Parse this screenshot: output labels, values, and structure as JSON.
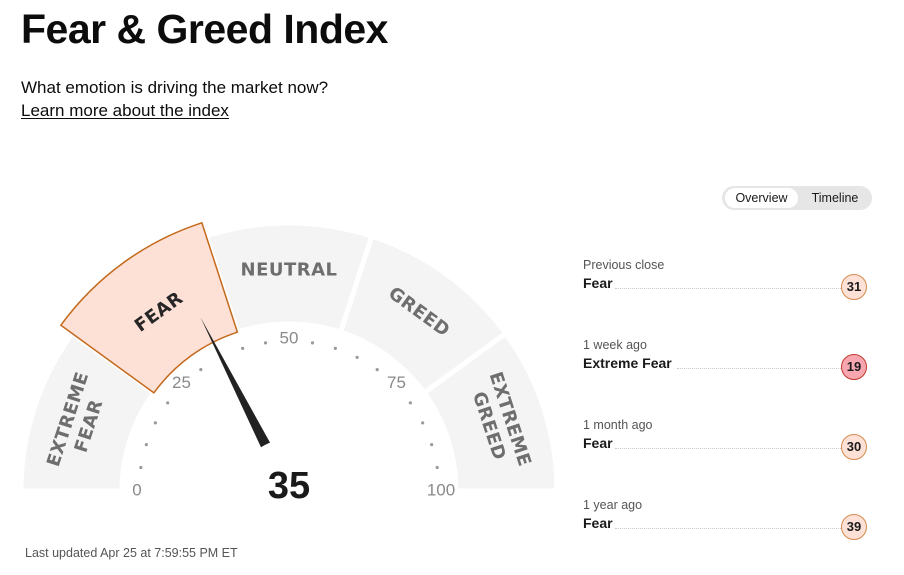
{
  "header": {
    "title": "Fear & Greed Index",
    "subtitle": "What emotion is driving the market now?",
    "learn_link": "Learn more about the index"
  },
  "gauge": {
    "score": 35,
    "current_rating": "Fear",
    "segments": [
      {
        "lines": [
          "EXTREME",
          "FEAR"
        ],
        "active": false
      },
      {
        "lines": [
          "FEAR"
        ],
        "active": true
      },
      {
        "lines": [
          "NEUTRAL"
        ],
        "active": false
      },
      {
        "lines": [
          "GREED"
        ],
        "active": false
      },
      {
        "lines": [
          "EXTREME",
          "GREED"
        ],
        "active": false
      }
    ],
    "tick_labels": [
      "0",
      "25",
      "50",
      "75",
      "100"
    ],
    "range": [
      0,
      100
    ],
    "colors": {
      "segment": "#f4f4f4",
      "active_fill": "#fde0d6",
      "active_stroke": "#c4691b",
      "needle": "#222222"
    }
  },
  "last_updated": "Last updated Apr 25 at 7:59:55 PM ET",
  "view_toggle": {
    "options": [
      "Overview",
      "Timeline"
    ],
    "selected": "Overview"
  },
  "history": [
    {
      "when": "Previous close",
      "rating": "Fear",
      "value": "31",
      "color": "#fde0d6"
    },
    {
      "when": "1 week ago",
      "rating": "Extreme Fear",
      "value": "19",
      "color": "#f8a7b1"
    },
    {
      "when": "1 month ago",
      "rating": "Fear",
      "value": "30",
      "color": "#fde0d6"
    },
    {
      "when": "1 year ago",
      "rating": "Fear",
      "value": "39",
      "color": "#fde0d6"
    }
  ]
}
